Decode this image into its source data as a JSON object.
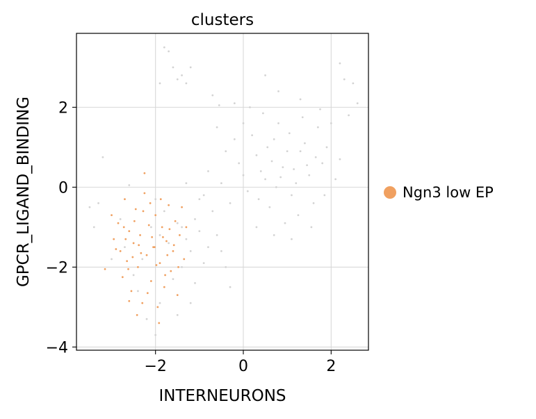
{
  "chart_data": {
    "type": "scatter",
    "title": "clusters",
    "xlabel": "INTERNEURONS",
    "ylabel": "GPCR_LIGAND_BINDING",
    "xlim": [
      -3.8,
      2.85
    ],
    "ylim": [
      -4.08,
      3.85
    ],
    "x_ticks": [
      -2,
      0,
      2
    ],
    "y_ticks": [
      -4,
      -2,
      0,
      2
    ],
    "x_tick_labels": [
      "−2",
      "0",
      "2"
    ],
    "y_tick_labels": [
      "−4",
      "−2",
      "0",
      "2"
    ],
    "grid": true,
    "legend_position": "right",
    "series": [
      {
        "name": "Ngn3 low EP",
        "color": "#f0a060",
        "points": [
          [
            -3.15,
            -2.05
          ],
          [
            -3.0,
            -0.7
          ],
          [
            -2.95,
            -1.3
          ],
          [
            -2.85,
            -0.9
          ],
          [
            -2.8,
            -1.6
          ],
          [
            -2.75,
            -2.25
          ],
          [
            -2.7,
            -0.3
          ],
          [
            -2.65,
            -1.85
          ],
          [
            -2.6,
            -1.1
          ],
          [
            -2.55,
            -2.6
          ],
          [
            -2.5,
            -1.4
          ],
          [
            -2.45,
            -0.55
          ],
          [
            -2.4,
            -2.0
          ],
          [
            -2.35,
            -1.2
          ],
          [
            -2.3,
            -2.9
          ],
          [
            -2.25,
            -0.15
          ],
          [
            -2.2,
            -1.7
          ],
          [
            -2.15,
            -0.95
          ],
          [
            -2.1,
            -2.35
          ],
          [
            -2.05,
            -1.5
          ],
          [
            -2.0,
            -0.7
          ],
          [
            -1.95,
            -3.0
          ],
          [
            -1.9,
            -1.9
          ],
          [
            -1.85,
            -1.0
          ],
          [
            -1.8,
            -2.5
          ],
          [
            -1.75,
            -1.35
          ],
          [
            -1.7,
            -0.45
          ],
          [
            -1.65,
            -2.1
          ],
          [
            -1.6,
            -1.6
          ],
          [
            -1.55,
            -0.85
          ],
          [
            -1.5,
            -2.7
          ],
          [
            -1.45,
            -1.2
          ],
          [
            -1.4,
            -0.5
          ],
          [
            -1.35,
            -1.8
          ],
          [
            -1.3,
            -1.0
          ],
          [
            -2.9,
            -1.55
          ],
          [
            -2.72,
            -1.0
          ],
          [
            -2.62,
            -2.05
          ],
          [
            -2.48,
            -0.85
          ],
          [
            -2.33,
            -1.65
          ],
          [
            -2.18,
            -2.65
          ],
          [
            -2.08,
            -1.25
          ],
          [
            -1.98,
            -1.95
          ],
          [
            -1.88,
            -0.3
          ],
          [
            -1.78,
            -2.2
          ],
          [
            -1.68,
            -1.05
          ],
          [
            -1.58,
            -1.45
          ],
          [
            -1.48,
            -2.0
          ],
          [
            -2.52,
            -1.75
          ],
          [
            -2.28,
            -0.6
          ],
          [
            -2.42,
            -3.2
          ],
          [
            -1.92,
            -3.4
          ],
          [
            -2.25,
            0.35
          ],
          [
            -2.02,
            -1.5
          ],
          [
            -2.6,
            -2.85
          ],
          [
            -1.73,
            -1.7
          ],
          [
            -2.38,
            -1.45
          ],
          [
            -2.12,
            -0.4
          ],
          [
            -1.83,
            -1.25
          ],
          [
            -2.68,
            -1.3
          ]
        ]
      },
      {
        "name": "",
        "color": "#d3d3d3",
        "points": [
          [
            0.3,
            0.8
          ],
          [
            0.5,
            0.2
          ],
          [
            0.7,
            1.2
          ],
          [
            0.9,
            0.5
          ],
          [
            1.1,
            -0.2
          ],
          [
            1.3,
            0.9
          ],
          [
            1.5,
            0.3
          ],
          [
            1.7,
            1.5
          ],
          [
            0.6,
            -0.5
          ],
          [
            0.8,
            1.6
          ],
          [
            1.0,
            0.9
          ],
          [
            1.2,
            0.1
          ],
          [
            1.4,
            1.1
          ],
          [
            1.6,
            -0.4
          ],
          [
            1.8,
            0.6
          ],
          [
            0.4,
            0.4
          ],
          [
            0.2,
            1.3
          ],
          [
            1.9,
            1.0
          ],
          [
            2.1,
            0.2
          ],
          [
            0.1,
            -0.1
          ],
          [
            0.75,
            0.0
          ],
          [
            1.05,
            1.35
          ],
          [
            1.25,
            -0.7
          ],
          [
            1.45,
            0.55
          ],
          [
            0.55,
            1.0
          ],
          [
            0.95,
            -0.9
          ],
          [
            1.65,
            0.75
          ],
          [
            1.85,
            -0.2
          ],
          [
            0.35,
            -0.3
          ],
          [
            2.0,
            1.6
          ],
          [
            0.65,
            0.65
          ],
          [
            1.15,
            0.45
          ],
          [
            0.85,
            0.25
          ],
          [
            1.35,
            1.75
          ],
          [
            1.55,
            -1.0
          ],
          [
            0.45,
            1.85
          ],
          [
            2.2,
            0.7
          ],
          [
            -0.1,
            0.6
          ],
          [
            0.15,
            2.0
          ],
          [
            1.75,
            1.95
          ],
          [
            -0.5,
            0.1
          ],
          [
            -0.3,
            -0.4
          ],
          [
            -0.7,
            -0.6
          ],
          [
            -0.9,
            -0.2
          ],
          [
            -1.1,
            -0.8
          ],
          [
            -0.4,
            0.9
          ],
          [
            -0.6,
            1.5
          ],
          [
            -0.2,
            1.2
          ],
          [
            -0.8,
            0.4
          ],
          [
            0.0,
            0.3
          ],
          [
            -1.3,
            -1.3
          ],
          [
            -1.5,
            -0.9
          ],
          [
            -1.2,
            -1.6
          ],
          [
            -1.0,
            -1.1
          ],
          [
            -0.8,
            -1.5
          ],
          [
            -1.7,
            -1.4
          ],
          [
            -1.9,
            -1.2
          ],
          [
            -2.1,
            -1.0
          ],
          [
            -2.3,
            -1.8
          ],
          [
            -1.6,
            -2.3
          ],
          [
            -1.4,
            -2.0
          ],
          [
            -1.1,
            -2.4
          ],
          [
            -0.9,
            -1.9
          ],
          [
            -2.5,
            -2.2
          ],
          [
            -2.7,
            -1.5
          ],
          [
            -1.8,
            -0.6
          ],
          [
            -1.3,
            0.1
          ],
          [
            -1.0,
            -0.3
          ],
          [
            -0.6,
            -1.2
          ],
          [
            -0.4,
            -2.0
          ],
          [
            -1.9,
            -2.9
          ],
          [
            -1.5,
            -3.2
          ],
          [
            -1.2,
            -2.9
          ],
          [
            -2.2,
            -3.3
          ],
          [
            -2.0,
            -3.7
          ],
          [
            -3.3,
            -0.4
          ],
          [
            -3.5,
            -0.5
          ],
          [
            -3.4,
            -1.0
          ],
          [
            -3.2,
            0.75
          ],
          [
            -0.7,
            2.3
          ],
          [
            -1.6,
            3.0
          ],
          [
            -1.4,
            2.8
          ],
          [
            -1.7,
            3.4
          ],
          [
            -1.3,
            2.6
          ],
          [
            -1.8,
            3.5
          ],
          [
            -1.9,
            2.6
          ],
          [
            -1.5,
            2.7
          ],
          [
            -1.2,
            3.0
          ],
          [
            2.3,
            2.7
          ],
          [
            2.5,
            2.6
          ],
          [
            2.6,
            2.1
          ],
          [
            2.4,
            1.8
          ],
          [
            2.2,
            3.1
          ],
          [
            0.5,
            2.8
          ],
          [
            -0.55,
            2.05
          ],
          [
            1.3,
            2.2
          ],
          [
            0.8,
            2.4
          ],
          [
            0.0,
            1.6
          ],
          [
            -0.2,
            2.1
          ],
          [
            1.1,
            -1.3
          ],
          [
            0.7,
            -1.2
          ],
          [
            0.3,
            -1.0
          ],
          [
            -2.6,
            0.05
          ],
          [
            -2.8,
            -0.8
          ],
          [
            -3.0,
            -1.8
          ],
          [
            -2.4,
            -2.6
          ],
          [
            -0.3,
            -2.5
          ],
          [
            -0.5,
            -1.6
          ],
          [
            -1.4,
            -1.0
          ],
          [
            -2.0,
            -0.3
          ]
        ]
      }
    ]
  }
}
